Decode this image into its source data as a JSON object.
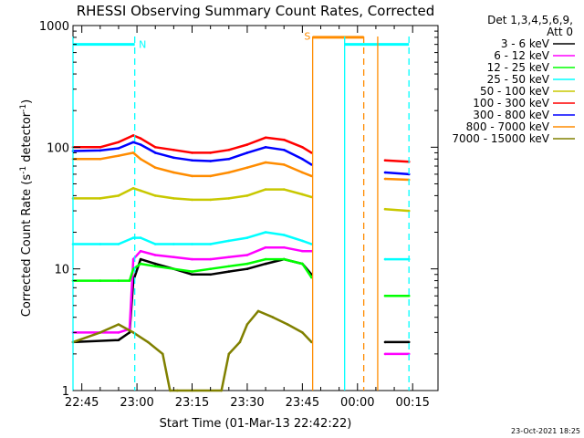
{
  "chart_data": {
    "type": "line",
    "title": "RHESSI Observing Summary Count Rates, Corrected",
    "xlabel": "Start Time (01-Mar-13 22:42:22)",
    "ylabel_prefix": "Corrected Count Rate (s",
    "ylabel_sup1": "-1",
    "ylabel_mid": " detector",
    "ylabel_sup2": "-1",
    "ylabel_suffix": ")",
    "ylabel": "Corrected Count Rate (s-1 detector-1)",
    "yscale": "log",
    "ylim": [
      1,
      1000
    ],
    "xlim_min": [
      -2.4,
      26.0
    ],
    "x_ticks": [
      {
        "label": "22:45",
        "min": 0
      },
      {
        "label": "23:00",
        "min": 15
      },
      {
        "label": "23:15",
        "min": 30
      },
      {
        "label": "23:30",
        "min": 45
      },
      {
        "label": "23:45",
        "min": 60
      },
      {
        "label": "00:00",
        "min": 75
      },
      {
        "label": "00:15",
        "min": 90
      }
    ],
    "y_ticks": [
      {
        "label": "1",
        "value": 1
      },
      {
        "label": "10",
        "value": 10
      },
      {
        "label": "100",
        "value": 100
      },
      {
        "label": "1000",
        "value": 1000
      }
    ],
    "legend_header": [
      "Det 1,3,4,5,6,9,",
      "Att 0"
    ],
    "legend_position": "right",
    "grid": false,
    "series": [
      {
        "name": "3 - 6 keV",
        "color": "#000000",
        "x": [
          -2.4,
          10,
          13,
          14,
          16,
          20,
          25,
          30,
          35,
          40,
          45,
          50,
          55,
          60,
          62.5,
          82.5,
          89
        ],
        "y": [
          2.5,
          2.6,
          3.0,
          8,
          12,
          11,
          10,
          9,
          9,
          9.5,
          10,
          11,
          12,
          11,
          9,
          2.5,
          2.5
        ]
      },
      {
        "name": "6 - 12 keV",
        "color": "#ff00ff",
        "x": [
          -2.4,
          10,
          13,
          14,
          16,
          20,
          25,
          30,
          35,
          40,
          45,
          50,
          55,
          60,
          62.5,
          82.5,
          89
        ],
        "y": [
          3.0,
          3.0,
          3.2,
          12,
          14,
          13,
          12.5,
          12,
          12,
          12.5,
          13,
          15,
          15,
          14,
          14,
          2.0,
          2.0
        ]
      },
      {
        "name": "12 - 25 keV",
        "color": "#00ff00",
        "x": [
          -2.4,
          5,
          10,
          13,
          14,
          16,
          20,
          25,
          30,
          35,
          40,
          45,
          50,
          55,
          60,
          62.5,
          82.5,
          89
        ],
        "y": [
          8,
          8,
          8,
          8,
          10,
          11,
          10.5,
          10,
          9.5,
          10,
          10.5,
          11,
          12,
          12,
          11,
          8.5,
          6,
          6
        ]
      },
      {
        "name": "25 - 50 keV",
        "color": "#00ffff",
        "x": [
          -2.4,
          5,
          10,
          14,
          16,
          20,
          25,
          30,
          35,
          40,
          45,
          50,
          55,
          60,
          62.5,
          82.5,
          89
        ],
        "y": [
          16,
          16,
          16,
          18,
          18,
          16,
          16,
          16,
          16,
          17,
          18,
          20,
          19,
          17,
          16,
          12,
          12
        ]
      },
      {
        "name": "50 - 100 keV",
        "color": "#c8c800",
        "x": [
          -2.4,
          5,
          10,
          14,
          16,
          20,
          25,
          30,
          35,
          40,
          45,
          50,
          55,
          60,
          62.5,
          82.5,
          89
        ],
        "y": [
          38,
          38,
          40,
          46,
          44,
          40,
          38,
          37,
          37,
          38,
          40,
          45,
          45,
          41,
          39,
          31,
          30
        ]
      },
      {
        "name": "100 - 300 keV",
        "color": "#ff0000",
        "x": [
          -2.4,
          5,
          10,
          14,
          16,
          20,
          25,
          30,
          35,
          40,
          45,
          50,
          55,
          60,
          62.5,
          82.5,
          89
        ],
        "y": [
          100,
          100,
          110,
          125,
          118,
          100,
          95,
          90,
          90,
          95,
          105,
          120,
          115,
          100,
          90,
          78,
          76
        ]
      },
      {
        "name": "300 - 800 keV",
        "color": "#0000ff",
        "x": [
          -2.4,
          5,
          10,
          14,
          16,
          20,
          25,
          30,
          35,
          40,
          45,
          50,
          55,
          60,
          62.5,
          82.5,
          89
        ],
        "y": [
          93,
          94,
          98,
          110,
          105,
          90,
          82,
          78,
          77,
          80,
          90,
          100,
          95,
          80,
          72,
          62,
          60
        ]
      },
      {
        "name": "800 - 7000 keV",
        "color": "#ff8c00",
        "x": [
          -2.4,
          5,
          10,
          14,
          16,
          20,
          25,
          30,
          35,
          40,
          45,
          50,
          55,
          60,
          62.5,
          82.5,
          89
        ],
        "y": [
          80,
          80,
          85,
          90,
          80,
          68,
          62,
          58,
          58,
          62,
          68,
          75,
          72,
          62,
          58,
          55,
          54
        ]
      },
      {
        "name": "7000 - 15000 keV",
        "color": "#808000",
        "x": [
          -2.4,
          5,
          10,
          14,
          18,
          22,
          24,
          26,
          30,
          38,
          40,
          43,
          45,
          48,
          52,
          56,
          60,
          62.5
        ],
        "y": [
          2.5,
          3,
          3.5,
          3.0,
          2.5,
          2.0,
          1.0,
          1.0,
          1.0,
          1.0,
          2.0,
          2.5,
          3.5,
          4.5,
          4.0,
          3.5,
          3.0,
          2.5
        ]
      }
    ],
    "markers": [
      {
        "kind": "cyan-solid-bar",
        "color": "#00ffff",
        "x_start": -2.4,
        "x_end": 14.4,
        "y": 700
      },
      {
        "kind": "cyan-solid-bar",
        "color": "#00ffff",
        "x_start": 71.5,
        "x_end": 89,
        "y": 700
      },
      {
        "kind": "orange-solid-bar",
        "color": "#ff8c00",
        "x_start": 62.8,
        "x_end": 76.7,
        "y": 800
      },
      {
        "kind": "cyan-dashed-vline",
        "color": "#00ffff",
        "x": 14.4
      },
      {
        "kind": "cyan-dashed-vline",
        "color": "#00ffff",
        "x": 89
      },
      {
        "kind": "cyan-solid-vline",
        "color": "#00ffff",
        "x": -2.4
      },
      {
        "kind": "cyan-solid-vline",
        "color": "#00ffff",
        "x": 71.5
      },
      {
        "kind": "orange-solid-vline",
        "color": "#ff8c00",
        "x": 62.8
      },
      {
        "kind": "orange-solid-vline",
        "color": "#ff8c00",
        "x": 80.5
      },
      {
        "kind": "orange-dashed-vline",
        "color": "#ff8c00",
        "x": 76.7
      }
    ],
    "annotations": [
      {
        "text": "N",
        "color": "#00ffff",
        "x": 15.5,
        "y": 700
      },
      {
        "text": "S",
        "color": "#ff8c00",
        "x": 60.5,
        "y": 820
      }
    ],
    "footer_stamp": "23-Oct-2021 18:25"
  }
}
